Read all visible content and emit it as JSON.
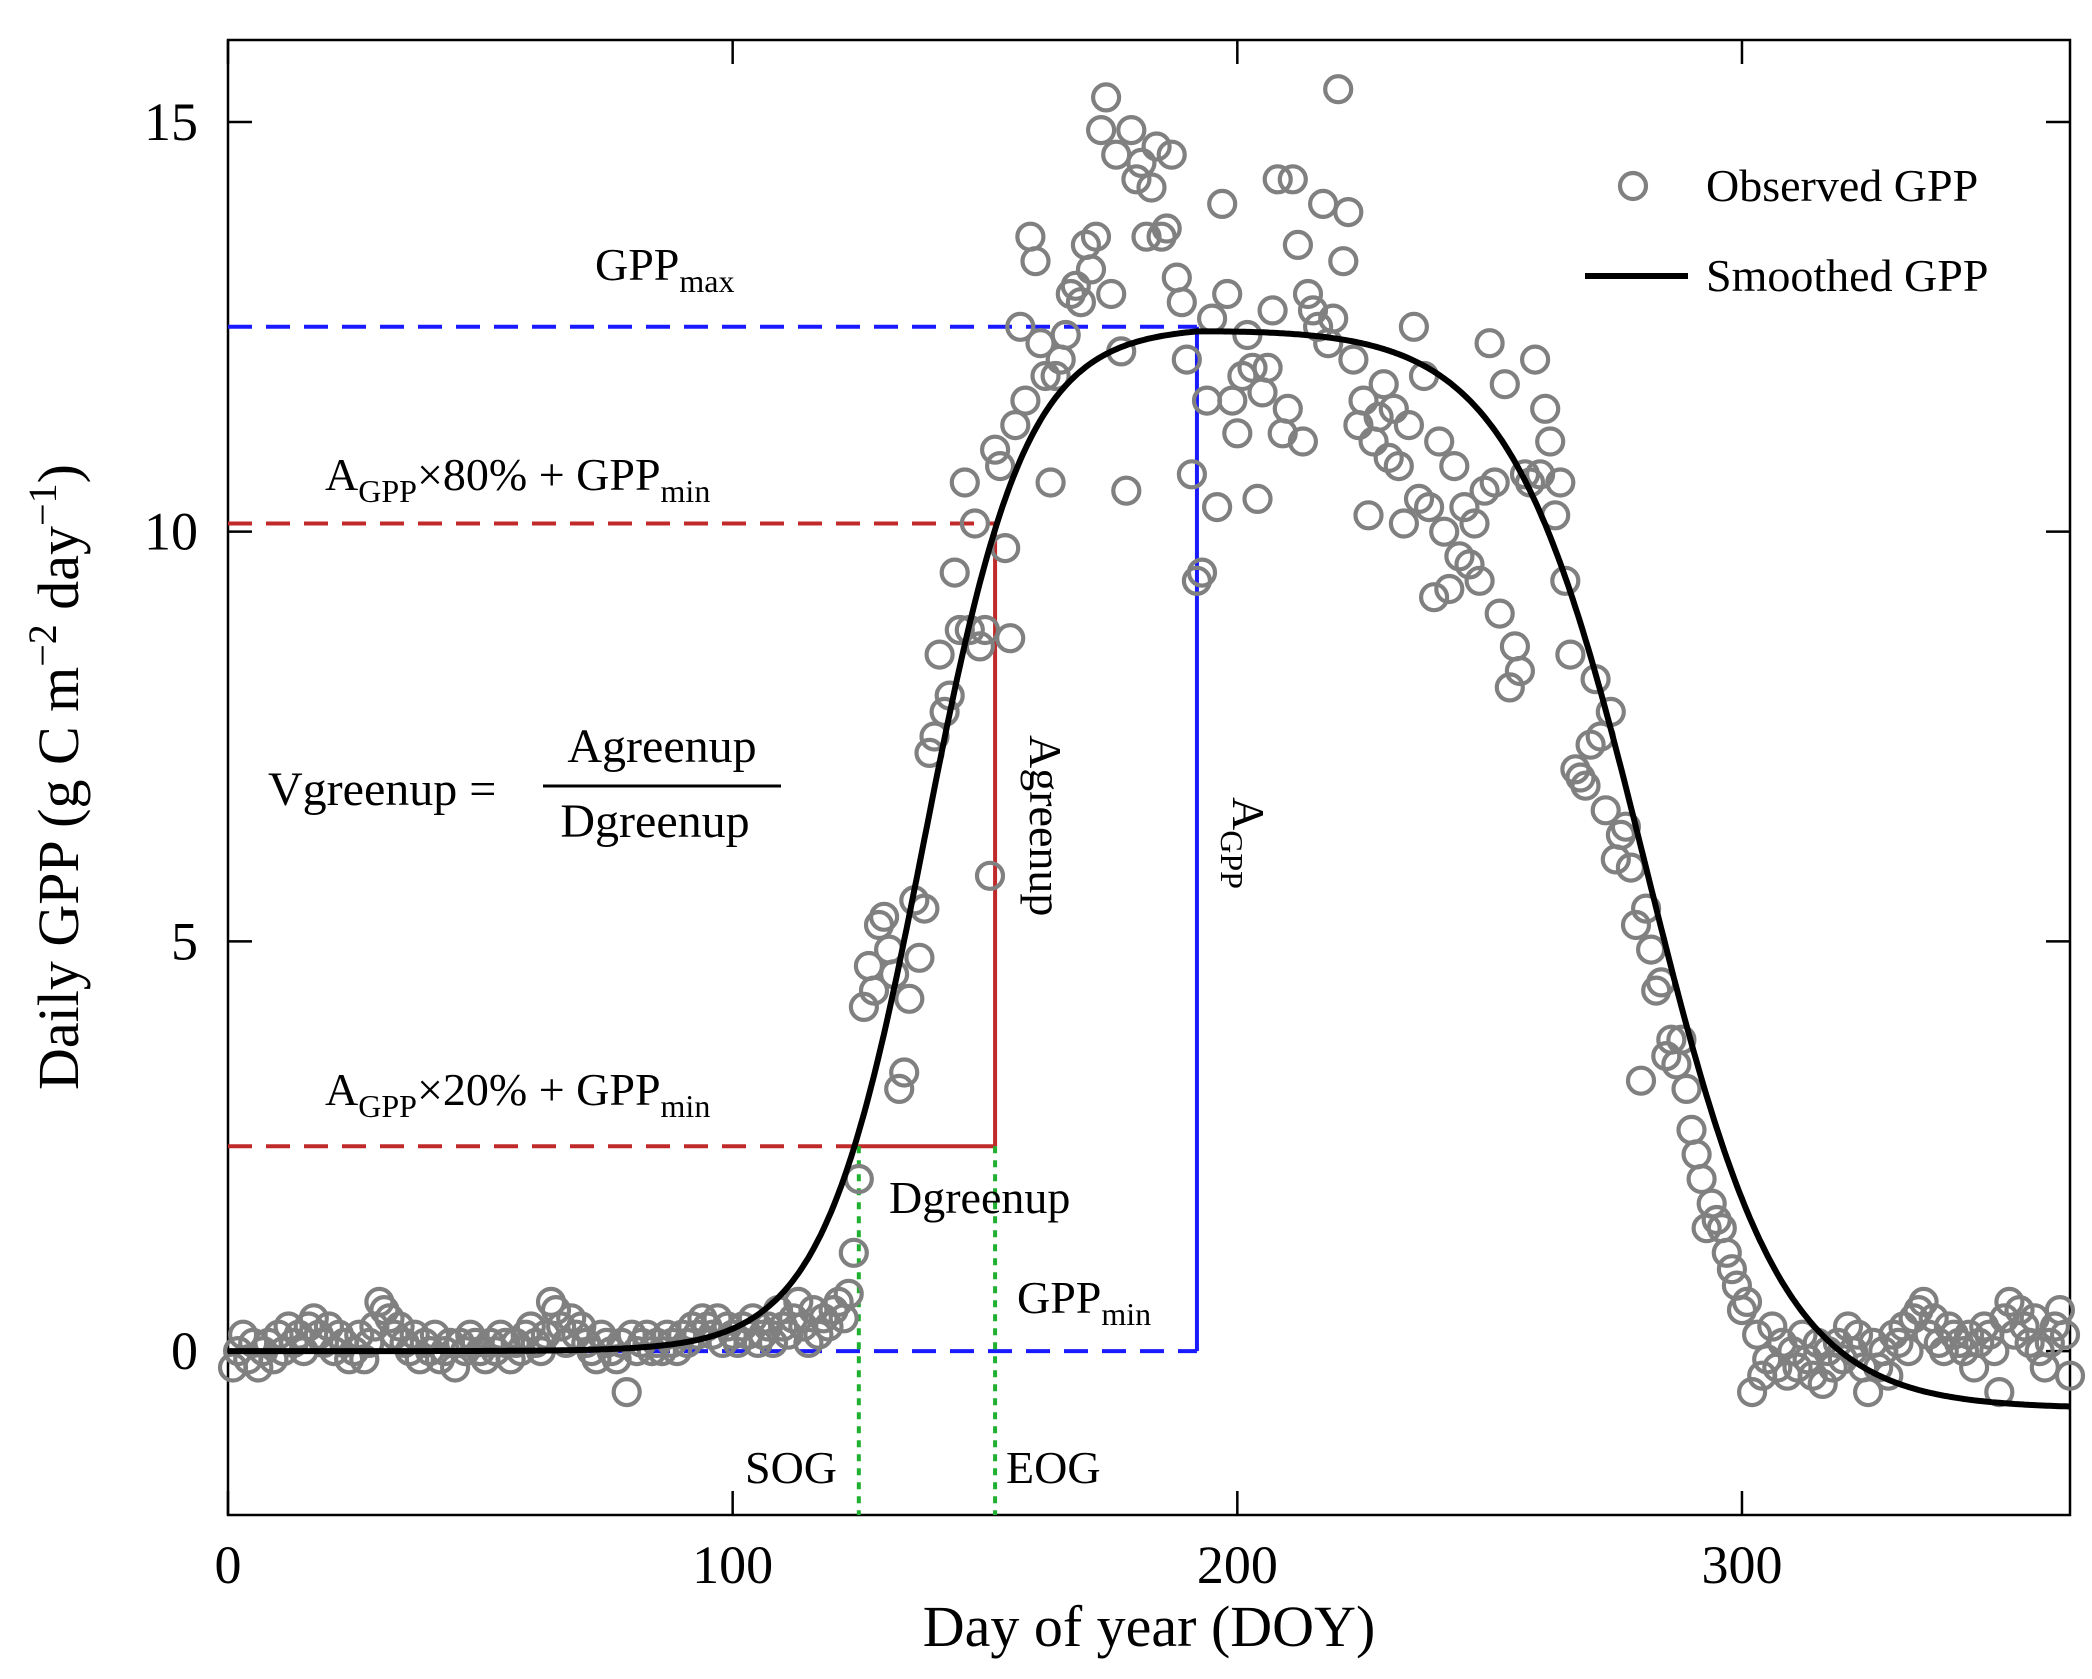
{
  "chart_data": {
    "type": "scatter",
    "xlabel": "Day of year (DOY)",
    "ylabel": "Daily GPP (g C m",
    "ylabel_sup1": "−2",
    "ylabel_mid": " day",
    "ylabel_sup2": "−1",
    "ylabel_end": ")",
    "xlim": [
      0,
      365
    ],
    "ylim": [
      -2,
      16
    ],
    "x_ticks": [
      0,
      100,
      200,
      300
    ],
    "y_ticks": [
      0,
      5,
      10,
      15
    ],
    "legend": {
      "position": "top-right",
      "observed": "Observed GPP",
      "smoothed": "Smoothed GPP"
    },
    "smoothed_params": {
      "gpp_min": 0.0,
      "gpp_max": 12.5,
      "peak_doy": 192,
      "greenup_center": 138,
      "greenup_rate": 0.1,
      "senescence_center": 281,
      "senescence_rate": 0.075,
      "senescence_floor": -0.7
    },
    "annotations": {
      "gpp_max": {
        "base": "GPP",
        "sub": "max",
        "y": 12.5
      },
      "gpp_min": {
        "base": "GPP",
        "sub": "min",
        "y": 0.0
      },
      "a80": {
        "a": "A",
        "a_sub": "GPP",
        "mid": "×80% + GPP",
        "end_sub": "min",
        "y": 10.1
      },
      "a20": {
        "a": "A",
        "a_sub": "GPP",
        "mid": "×20% + GPP",
        "end_sub": "min",
        "y": 2.5
      },
      "agreenup": "Agreenup",
      "a_gpp": {
        "base": "A",
        "sub": "GPP"
      },
      "dgreenup": "Dgreenup",
      "sog": {
        "label": "SOG",
        "x": 125
      },
      "eog": {
        "label": "EOG",
        "x": 152
      },
      "peak_x": 192,
      "equation": {
        "lhs": "Vgreenup =",
        "num": "Agreenup",
        "den": "Dgreenup"
      }
    },
    "observed": [
      [
        1,
        -0.2
      ],
      [
        2,
        0
      ],
      [
        3,
        0.2
      ],
      [
        4,
        -0.1
      ],
      [
        5,
        0.1
      ],
      [
        6,
        -0.2
      ],
      [
        7,
        0
      ],
      [
        8,
        0.1
      ],
      [
        9,
        -0.1
      ],
      [
        10,
        0.2
      ],
      [
        11,
        0
      ],
      [
        12,
        0.3
      ],
      [
        13,
        0.1
      ],
      [
        14,
        0.2
      ],
      [
        15,
        0
      ],
      [
        16,
        0.3
      ],
      [
        17,
        0.4
      ],
      [
        18,
        0.2
      ],
      [
        19,
        0.1
      ],
      [
        20,
        0.3
      ],
      [
        21,
        0
      ],
      [
        22,
        0.2
      ],
      [
        23,
        0.1
      ],
      [
        24,
        -0.1
      ],
      [
        25,
        0
      ],
      [
        26,
        0.2
      ],
      [
        27,
        -0.1
      ],
      [
        28,
        0.1
      ],
      [
        29,
        0.3
      ],
      [
        30,
        0.6
      ],
      [
        31,
        0.5
      ],
      [
        32,
        0.4
      ],
      [
        33,
        0.2
      ],
      [
        34,
        0.3
      ],
      [
        35,
        0.1
      ],
      [
        36,
        0
      ],
      [
        37,
        0.2
      ],
      [
        38,
        -0.1
      ],
      [
        39,
        0.1
      ],
      [
        40,
        0
      ],
      [
        41,
        0.2
      ],
      [
        42,
        -0.1
      ],
      [
        43,
        0
      ],
      [
        44,
        0.1
      ],
      [
        45,
        -0.2
      ],
      [
        46,
        0.1
      ],
      [
        47,
        0
      ],
      [
        48,
        0.2
      ],
      [
        49,
        0.1
      ],
      [
        50,
        0
      ],
      [
        51,
        -0.1
      ],
      [
        52,
        0.1
      ],
      [
        53,
        0
      ],
      [
        54,
        0.2
      ],
      [
        55,
        0.1
      ],
      [
        56,
        -0.1
      ],
      [
        57,
        0.1
      ],
      [
        58,
        0
      ],
      [
        59,
        0.2
      ],
      [
        60,
        0.3
      ],
      [
        61,
        0.1
      ],
      [
        62,
        0
      ],
      [
        63,
        0.2
      ],
      [
        64,
        0.6
      ],
      [
        65,
        0.5
      ],
      [
        66,
        0.3
      ],
      [
        67,
        0.1
      ],
      [
        68,
        0.4
      ],
      [
        69,
        0.2
      ],
      [
        70,
        0.3
      ],
      [
        71,
        0.1
      ],
      [
        72,
        0
      ],
      [
        73,
        -0.1
      ],
      [
        74,
        0.2
      ],
      [
        75,
        0.1
      ],
      [
        76,
        0
      ],
      [
        77,
        -0.1
      ],
      [
        78,
        0.1
      ],
      [
        79,
        -0.5
      ],
      [
        80,
        0.2
      ],
      [
        81,
        0
      ],
      [
        82,
        0.1
      ],
      [
        83,
        0.2
      ],
      [
        84,
        0
      ],
      [
        85,
        0.1
      ],
      [
        86,
        0
      ],
      [
        87,
        0.2
      ],
      [
        88,
        0.1
      ],
      [
        89,
        0
      ],
      [
        90,
        0.2
      ],
      [
        91,
        0.1
      ],
      [
        92,
        0.3
      ],
      [
        93,
        0.2
      ],
      [
        94,
        0.4
      ],
      [
        95,
        0.3
      ],
      [
        96,
        0.2
      ],
      [
        97,
        0.4
      ],
      [
        98,
        0.1
      ],
      [
        99,
        0.3
      ],
      [
        100,
        0.2
      ],
      [
        101,
        0.1
      ],
      [
        102,
        0.3
      ],
      [
        103,
        0.2
      ],
      [
        104,
        0.4
      ],
      [
        105,
        0.1
      ],
      [
        106,
        0.2
      ],
      [
        107,
        0.3
      ],
      [
        108,
        0.1
      ],
      [
        109,
        0.5
      ],
      [
        110,
        0.3
      ],
      [
        111,
        0.2
      ],
      [
        112,
        0.4
      ],
      [
        113,
        0.6
      ],
      [
        114,
        0.3
      ],
      [
        115,
        0.1
      ],
      [
        116,
        0.5
      ],
      [
        117,
        0.2
      ],
      [
        118,
        0.4
      ],
      [
        119,
        0.3
      ],
      [
        120,
        0.5
      ],
      [
        121,
        0.6
      ],
      [
        122,
        0.4
      ],
      [
        123,
        0.7
      ],
      [
        124,
        1.2
      ],
      [
        125,
        2.1
      ],
      [
        126,
        4.2
      ],
      [
        127,
        4.7
      ],
      [
        128,
        4.4
      ],
      [
        129,
        5.2
      ],
      [
        130,
        5.3
      ],
      [
        131,
        4.9
      ],
      [
        132,
        4.6
      ],
      [
        133,
        3.2
      ],
      [
        134,
        3.4
      ],
      [
        135,
        4.3
      ],
      [
        136,
        5.5
      ],
      [
        137,
        4.8
      ],
      [
        138,
        5.4
      ],
      [
        139,
        7.3
      ],
      [
        140,
        7.5
      ],
      [
        141,
        8.5
      ],
      [
        142,
        7.8
      ],
      [
        143,
        8.0
      ],
      [
        144,
        9.5
      ],
      [
        145,
        8.8
      ],
      [
        146,
        10.6
      ],
      [
        147,
        8.8
      ],
      [
        148,
        10.1
      ],
      [
        149,
        8.6
      ],
      [
        150,
        8.8
      ],
      [
        151,
        5.8
      ],
      [
        152,
        11.0
      ],
      [
        153,
        10.8
      ],
      [
        154,
        9.8
      ],
      [
        155,
        8.7
      ],
      [
        156,
        11.3
      ],
      [
        157,
        12.5
      ],
      [
        158,
        11.6
      ],
      [
        159,
        13.6
      ],
      [
        160,
        13.3
      ],
      [
        161,
        12.3
      ],
      [
        162,
        11.9
      ],
      [
        163,
        10.6
      ],
      [
        164,
        11.9
      ],
      [
        165,
        12.1
      ],
      [
        166,
        12.4
      ],
      [
        167,
        12.9
      ],
      [
        168,
        13.0
      ],
      [
        169,
        12.8
      ],
      [
        170,
        13.5
      ],
      [
        171,
        13.2
      ],
      [
        172,
        13.6
      ],
      [
        173,
        14.9
      ],
      [
        174,
        15.3
      ],
      [
        175,
        12.9
      ],
      [
        176,
        14.6
      ],
      [
        177,
        12.2
      ],
      [
        178,
        10.5
      ],
      [
        179,
        14.9
      ],
      [
        180,
        14.3
      ],
      [
        181,
        14.5
      ],
      [
        182,
        13.6
      ],
      [
        183,
        14.2
      ],
      [
        184,
        14.7
      ],
      [
        185,
        13.6
      ],
      [
        186,
        13.7
      ],
      [
        187,
        14.6
      ],
      [
        188,
        13.1
      ],
      [
        189,
        12.8
      ],
      [
        190,
        12.1
      ],
      [
        191,
        10.7
      ],
      [
        192,
        9.4
      ],
      [
        193,
        9.5
      ],
      [
        194,
        11.6
      ],
      [
        195,
        12.6
      ],
      [
        196,
        10.3
      ],
      [
        197,
        14.0
      ],
      [
        198,
        12.9
      ],
      [
        199,
        11.6
      ],
      [
        200,
        11.2
      ],
      [
        201,
        11.9
      ],
      [
        202,
        12.4
      ],
      [
        203,
        12.0
      ],
      [
        204,
        10.4
      ],
      [
        205,
        11.7
      ],
      [
        206,
        12.0
      ],
      [
        207,
        12.7
      ],
      [
        208,
        14.3
      ],
      [
        209,
        11.2
      ],
      [
        210,
        11.5
      ],
      [
        211,
        14.3
      ],
      [
        212,
        13.5
      ],
      [
        213,
        11.1
      ],
      [
        214,
        12.9
      ],
      [
        215,
        12.7
      ],
      [
        216,
        12.5
      ],
      [
        217,
        14.0
      ],
      [
        218,
        12.3
      ],
      [
        219,
        12.6
      ],
      [
        220,
        15.4
      ],
      [
        221,
        13.3
      ],
      [
        222,
        13.9
      ],
      [
        223,
        12.1
      ],
      [
        224,
        11.3
      ],
      [
        225,
        11.6
      ],
      [
        226,
        10.2
      ],
      [
        227,
        11.1
      ],
      [
        228,
        11.4
      ],
      [
        229,
        11.8
      ],
      [
        230,
        10.9
      ],
      [
        231,
        11.5
      ],
      [
        232,
        10.8
      ],
      [
        233,
        10.1
      ],
      [
        234,
        11.3
      ],
      [
        235,
        12.5
      ],
      [
        236,
        10.4
      ],
      [
        237,
        11.9
      ],
      [
        238,
        10.3
      ],
      [
        239,
        9.2
      ],
      [
        240,
        11.1
      ],
      [
        241,
        10.0
      ],
      [
        242,
        9.3
      ],
      [
        243,
        10.8
      ],
      [
        244,
        9.7
      ],
      [
        245,
        10.3
      ],
      [
        246,
        9.6
      ],
      [
        247,
        10.1
      ],
      [
        248,
        9.4
      ],
      [
        249,
        10.5
      ],
      [
        250,
        12.3
      ],
      [
        251,
        10.6
      ],
      [
        252,
        9.0
      ],
      [
        253,
        11.8
      ],
      [
        254,
        8.1
      ],
      [
        255,
        8.6
      ],
      [
        256,
        8.3
      ],
      [
        257,
        10.7
      ],
      [
        258,
        10.6
      ],
      [
        259,
        12.1
      ],
      [
        260,
        10.7
      ],
      [
        261,
        11.5
      ],
      [
        262,
        11.1
      ],
      [
        263,
        10.2
      ],
      [
        264,
        10.6
      ],
      [
        265,
        9.4
      ],
      [
        266,
        8.5
      ],
      [
        267,
        7.1
      ],
      [
        268,
        7.0
      ],
      [
        269,
        6.9
      ],
      [
        270,
        7.4
      ],
      [
        271,
        8.2
      ],
      [
        272,
        7.5
      ],
      [
        273,
        6.6
      ],
      [
        274,
        7.8
      ],
      [
        275,
        6.0
      ],
      [
        276,
        6.3
      ],
      [
        277,
        6.4
      ],
      [
        278,
        5.9
      ],
      [
        279,
        5.2
      ],
      [
        280,
        3.3
      ],
      [
        281,
        5.4
      ],
      [
        282,
        4.9
      ],
      [
        283,
        4.4
      ],
      [
        284,
        4.5
      ],
      [
        285,
        3.6
      ],
      [
        286,
        3.8
      ],
      [
        287,
        3.5
      ],
      [
        288,
        3.8
      ],
      [
        289,
        3.2
      ],
      [
        290,
        2.7
      ],
      [
        291,
        2.4
      ],
      [
        292,
        2.1
      ],
      [
        293,
        1.5
      ],
      [
        294,
        1.8
      ],
      [
        295,
        1.6
      ],
      [
        296,
        1.5
      ],
      [
        297,
        1.2
      ],
      [
        298,
        1.0
      ],
      [
        299,
        0.8
      ],
      [
        300,
        0.5
      ],
      [
        301,
        0.6
      ],
      [
        302,
        -0.5
      ],
      [
        303,
        0.2
      ],
      [
        304,
        -0.3
      ],
      [
        305,
        -0.1
      ],
      [
        306,
        0.3
      ],
      [
        307,
        -0.2
      ],
      [
        308,
        0.1
      ],
      [
        309,
        -0.3
      ],
      [
        310,
        0.0
      ],
      [
        311,
        -0.2
      ],
      [
        312,
        0.2
      ],
      [
        313,
        -0.1
      ],
      [
        314,
        -0.3
      ],
      [
        315,
        0.1
      ],
      [
        316,
        -0.4
      ],
      [
        317,
        0.0
      ],
      [
        318,
        -0.2
      ],
      [
        319,
        0.1
      ],
      [
        320,
        -0.1
      ],
      [
        321,
        0.3
      ],
      [
        322,
        0.0
      ],
      [
        323,
        0.2
      ],
      [
        324,
        -0.2
      ],
      [
        325,
        -0.5
      ],
      [
        326,
        0.1
      ],
      [
        327,
        -0.2
      ],
      [
        328,
        0.0
      ],
      [
        329,
        -0.3
      ],
      [
        330,
        0.2
      ],
      [
        331,
        0.1
      ],
      [
        332,
        0.3
      ],
      [
        333,
        0.0
      ],
      [
        334,
        0.4
      ],
      [
        335,
        0.5
      ],
      [
        336,
        0.6
      ],
      [
        337,
        0.2
      ],
      [
        338,
        0.4
      ],
      [
        339,
        0.1
      ],
      [
        340,
        0.0
      ],
      [
        341,
        0.3
      ],
      [
        342,
        0.2
      ],
      [
        343,
        0.1
      ],
      [
        344,
        0.0
      ],
      [
        345,
        0.2
      ],
      [
        346,
        -0.2
      ],
      [
        347,
        0.1
      ],
      [
        348,
        0.3
      ],
      [
        349,
        0.2
      ],
      [
        350,
        0.0
      ],
      [
        351,
        -0.5
      ],
      [
        352,
        0.4
      ],
      [
        353,
        0.6
      ],
      [
        354,
        0.2
      ],
      [
        355,
        0.5
      ],
      [
        356,
        0.3
      ],
      [
        357,
        0.1
      ],
      [
        358,
        0.4
      ],
      [
        359,
        0.0
      ],
      [
        360,
        -0.2
      ],
      [
        361,
        0.1
      ],
      [
        362,
        0.3
      ],
      [
        363,
        0.5
      ],
      [
        364,
        0.2
      ],
      [
        365,
        -0.3
      ]
    ]
  }
}
